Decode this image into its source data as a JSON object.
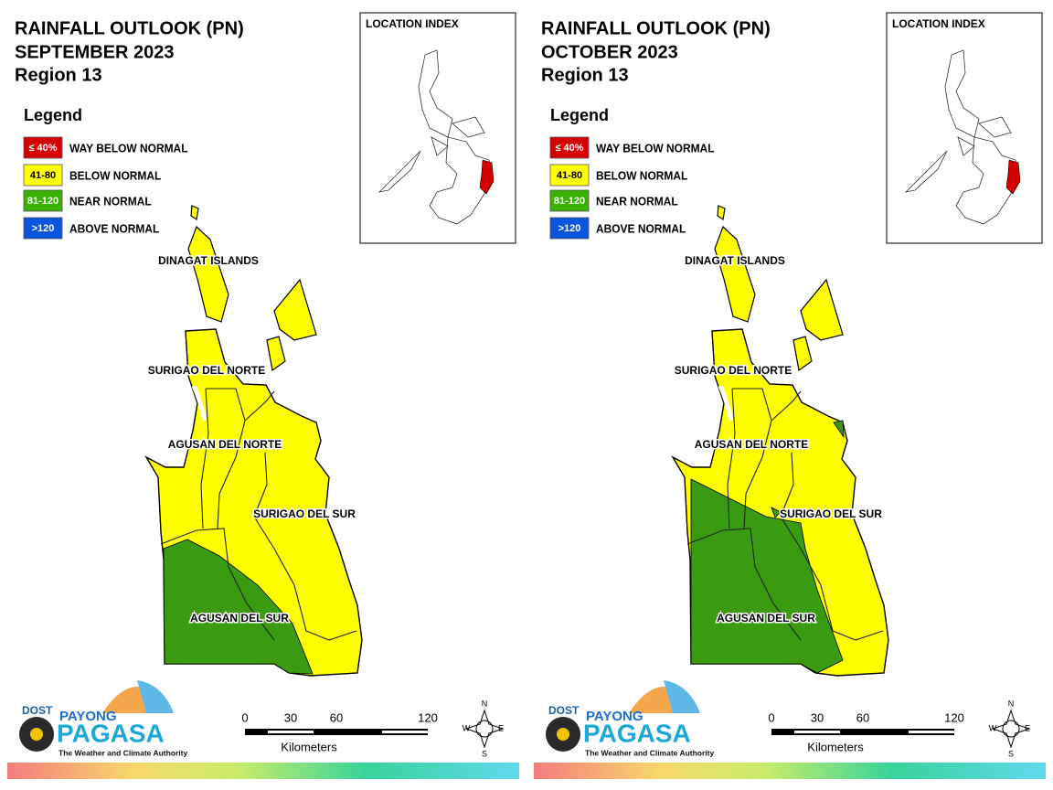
{
  "panels": [
    {
      "title": "RAINFALL OUTLOOK (PN)",
      "month": "SEPTEMBER 2023",
      "region": "Region 13",
      "legend_title": "Legend",
      "legend": [
        {
          "range": "≤ 40%",
          "label": "WAY BELOW NORMAL"
        },
        {
          "range": "41-80",
          "label": "BELOW NORMAL"
        },
        {
          "range": "81-120",
          "label": "NEAR NORMAL"
        },
        {
          "range": ">120",
          "label": "ABOVE NORMAL"
        }
      ],
      "location_index": "LOCATION INDEX",
      "provinces": [
        "DINAGAT ISLANDS",
        "SURIGAO DEL NORTE",
        "AGUSAN DEL NORTE",
        "SURIGAO DEL SUR",
        "AGUSAN DEL SUR"
      ],
      "scale": {
        "ticks": [
          0,
          30,
          60,
          120
        ],
        "unit": "Kilometers"
      },
      "compass": [
        "N",
        "E",
        "S",
        "W"
      ],
      "logo": {
        "agency": "DOST",
        "brand_top": "PAYONG",
        "brand": "PAGASA",
        "tagline": "The Weather and Climate Authority"
      }
    },
    {
      "title": "RAINFALL OUTLOOK (PN)",
      "month": "OCTOBER 2023",
      "region": "Region 13",
      "legend_title": "Legend",
      "legend": [
        {
          "range": "≤ 40%",
          "label": "WAY BELOW NORMAL"
        },
        {
          "range": "41-80",
          "label": "BELOW NORMAL"
        },
        {
          "range": "81-120",
          "label": "NEAR NORMAL"
        },
        {
          "range": ">120",
          "label": "ABOVE NORMAL"
        }
      ],
      "location_index": "LOCATION INDEX",
      "provinces": [
        "DINAGAT ISLANDS",
        "SURIGAO DEL NORTE",
        "AGUSAN DEL NORTE",
        "SURIGAO DEL SUR",
        "AGUSAN DEL SUR"
      ],
      "scale": {
        "ticks": [
          0,
          30,
          60,
          120
        ],
        "unit": "Kilometers"
      },
      "compass": [
        "N",
        "E",
        "S",
        "W"
      ],
      "logo": {
        "agency": "DOST",
        "brand_top": "PAYONG",
        "brand": "PAGASA",
        "tagline": "The Weather and Climate Authority"
      }
    }
  ]
}
